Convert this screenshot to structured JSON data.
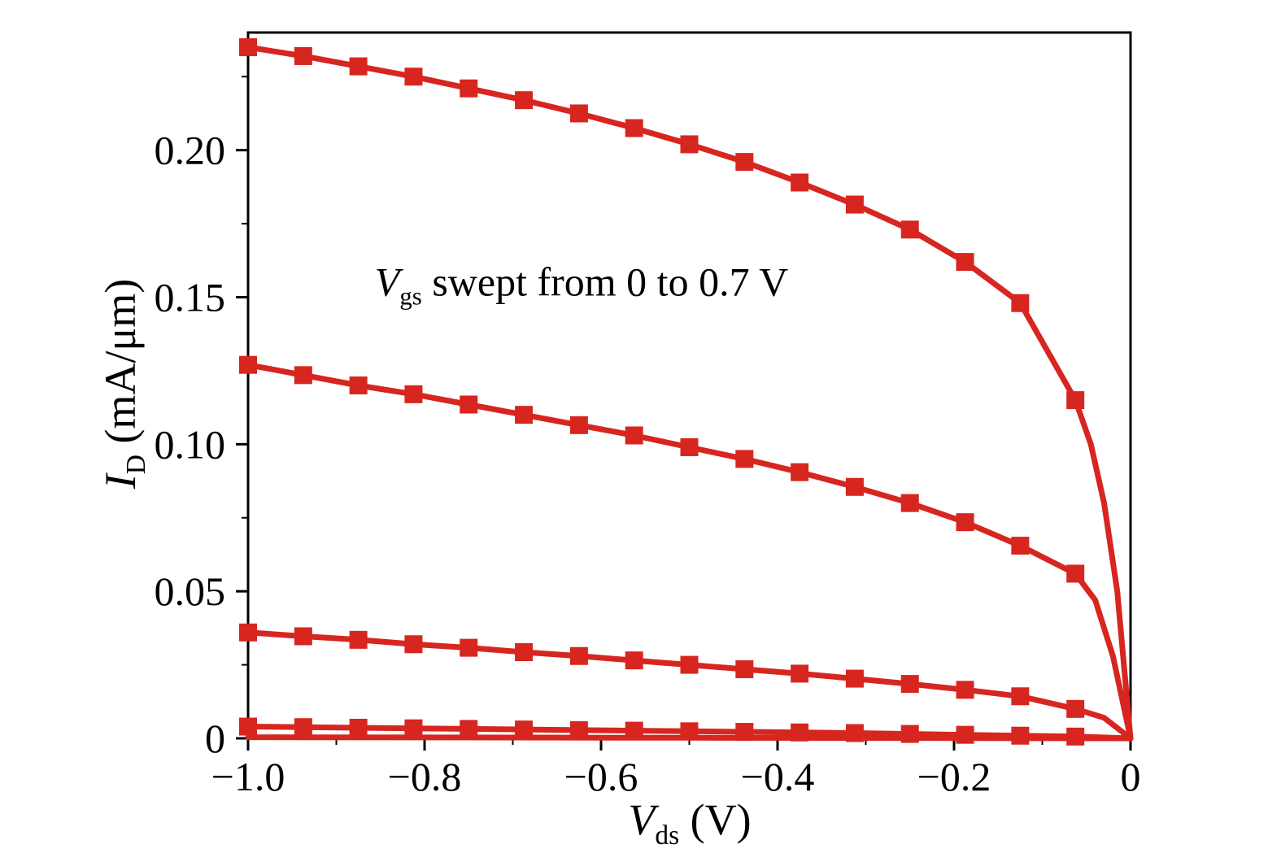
{
  "chart_data": {
    "type": "line",
    "title": "",
    "xlabel": {
      "var": "V",
      "sub": "ds",
      "unit": " (V)"
    },
    "ylabel": {
      "var": "I",
      "sub": "D",
      "unit": " (mA/μm)"
    },
    "annotation": {
      "var": "V",
      "sub": "gs",
      "text": " swept from 0 to 0.7 V"
    },
    "xlim": [
      -1.0,
      0
    ],
    "ylim": [
      0,
      0.24
    ],
    "grid": false,
    "legend": "none",
    "line_color": "#d7261f",
    "marker": "square",
    "x_major_ticks": [
      -1.0,
      -0.8,
      -0.6,
      -0.4,
      -0.2,
      0
    ],
    "x_tick_labels": [
      "−1.0",
      "−0.8",
      "−0.6",
      "−0.4",
      "−0.2",
      "0"
    ],
    "x_minor_ticks": [
      -0.9,
      -0.7,
      -0.5,
      -0.3,
      -0.1
    ],
    "y_major_ticks": [
      0,
      0.05,
      0.1,
      0.15,
      0.2
    ],
    "y_tick_labels": [
      "0",
      "0.05",
      "0.10",
      "0.15",
      "0.20"
    ],
    "y_minor_ticks": [
      0.025,
      0.075,
      0.125,
      0.175,
      0.225
    ],
    "series": [
      {
        "name": "curve-1",
        "markers": 16,
        "x": [
          -1.0,
          -0.9375,
          -0.875,
          -0.8125,
          -0.75,
          -0.6875,
          -0.625,
          -0.5625,
          -0.5,
          -0.4375,
          -0.375,
          -0.3125,
          -0.25,
          -0.1875,
          -0.125,
          -0.0625,
          -0.045,
          -0.03,
          -0.015,
          0
        ],
        "y": [
          0.235,
          0.232,
          0.2285,
          0.225,
          0.221,
          0.217,
          0.2125,
          0.2075,
          0.202,
          0.196,
          0.189,
          0.1815,
          0.173,
          0.162,
          0.148,
          0.115,
          0.1,
          0.08,
          0.05,
          0
        ]
      },
      {
        "name": "curve-2",
        "markers": 16,
        "x": [
          -1.0,
          -0.9375,
          -0.875,
          -0.8125,
          -0.75,
          -0.6875,
          -0.625,
          -0.5625,
          -0.5,
          -0.4375,
          -0.375,
          -0.3125,
          -0.25,
          -0.1875,
          -0.125,
          -0.0625,
          -0.04,
          -0.02,
          0
        ],
        "y": [
          0.127,
          0.1235,
          0.12,
          0.117,
          0.1135,
          0.11,
          0.1065,
          0.103,
          0.099,
          0.095,
          0.0905,
          0.0855,
          0.08,
          0.0735,
          0.0655,
          0.056,
          0.047,
          0.028,
          0
        ]
      },
      {
        "name": "curve-3",
        "markers": 16,
        "x": [
          -1.0,
          -0.9375,
          -0.875,
          -0.8125,
          -0.75,
          -0.6875,
          -0.625,
          -0.5625,
          -0.5,
          -0.4375,
          -0.375,
          -0.3125,
          -0.25,
          -0.1875,
          -0.125,
          -0.0625,
          -0.03,
          0
        ],
        "y": [
          0.036,
          0.0347,
          0.0335,
          0.032,
          0.0308,
          0.0293,
          0.028,
          0.0265,
          0.025,
          0.0235,
          0.022,
          0.0203,
          0.0185,
          0.0165,
          0.0143,
          0.01,
          0.007,
          0
        ]
      },
      {
        "name": "curve-4",
        "markers": 16,
        "x": [
          -1.0,
          -0.9375,
          -0.875,
          -0.8125,
          -0.75,
          -0.6875,
          -0.625,
          -0.5625,
          -0.5,
          -0.4375,
          -0.375,
          -0.3125,
          -0.25,
          -0.1875,
          -0.125,
          -0.0625,
          0
        ],
        "y": [
          0.004,
          0.0038,
          0.0036,
          0.0034,
          0.0032,
          0.003,
          0.0028,
          0.0026,
          0.0024,
          0.0022,
          0.002,
          0.0018,
          0.0015,
          0.0012,
          0.0009,
          0.0006,
          0
        ]
      },
      {
        "name": "curve-5",
        "markers": 0,
        "x": [
          -1.0,
          -0.5,
          0
        ],
        "y": [
          0.0004,
          0.0002,
          0
        ]
      }
    ]
  }
}
